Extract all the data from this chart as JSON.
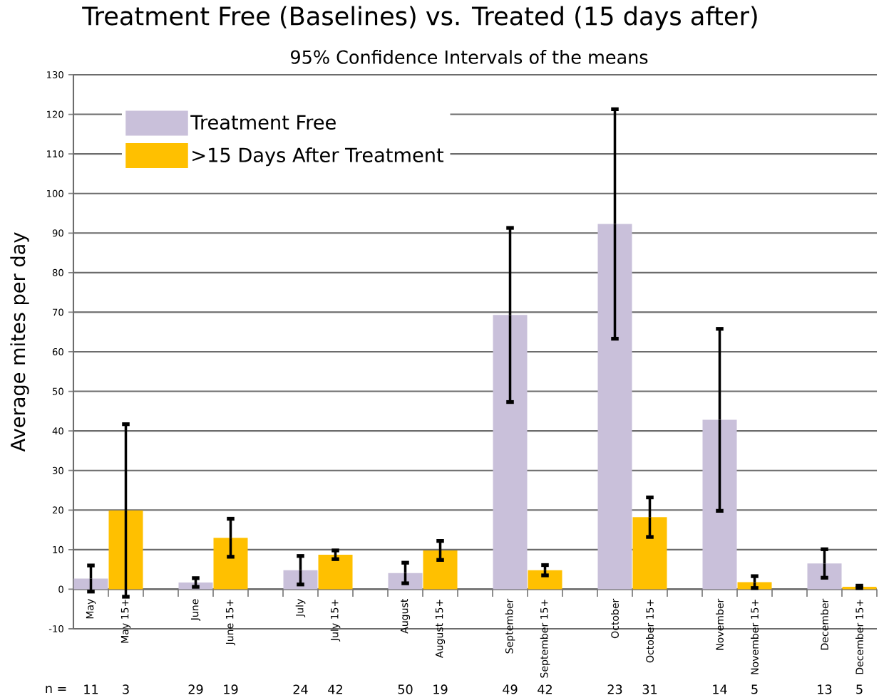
{
  "chart_data": {
    "type": "bar",
    "title": "Treatment Free (Baselines) vs. Treated (15 days after)",
    "subtitle": "95% Confidence Intervals of the means",
    "ylabel": "Average mites per day",
    "categories": [
      "May",
      "May 15+",
      null,
      "June",
      "June 15+",
      null,
      "July",
      "July 15+",
      null,
      "August",
      "August 15+",
      null,
      "September",
      "September 15+",
      null,
      "October",
      "October 15+",
      null,
      "November",
      "November 15+",
      null,
      "December",
      "December 15+"
    ],
    "series": [
      {
        "name": "Treatment Free",
        "color": "#c9c0da",
        "values": [
          2.7,
          null,
          null,
          1.7,
          null,
          null,
          4.8,
          null,
          null,
          4.1,
          null,
          null,
          69.3,
          null,
          null,
          92.3,
          null,
          null,
          42.8,
          null,
          null,
          6.5,
          null
        ],
        "errors": [
          3.3,
          null,
          null,
          1.1,
          null,
          null,
          3.6,
          null,
          null,
          2.6,
          null,
          null,
          22,
          null,
          null,
          29,
          null,
          null,
          23,
          null,
          null,
          3.6,
          null
        ]
      },
      {
        "name": ">15 Days After Treatment",
        "color": "#ffc000",
        "values": [
          null,
          19.9,
          null,
          null,
          13,
          null,
          null,
          8.7,
          null,
          null,
          9.8,
          null,
          null,
          4.8,
          null,
          null,
          18.2,
          null,
          null,
          1.8,
          null,
          null,
          0.6
        ],
        "errors": [
          null,
          21.8,
          null,
          null,
          4.8,
          null,
          null,
          1.1,
          null,
          null,
          2.4,
          null,
          null,
          1.3,
          null,
          null,
          5,
          null,
          null,
          1.5,
          null,
          null,
          0.3
        ]
      }
    ],
    "ylim": [
      -10,
      130
    ],
    "yticks": [
      -10,
      0,
      10,
      20,
      30,
      40,
      50,
      60,
      70,
      80,
      90,
      100,
      110,
      120,
      130
    ],
    "grid": "y",
    "legend": "top left",
    "annotations": [
      "n =",
      "11",
      "3",
      "29",
      "19",
      "24",
      "42",
      "50",
      "19",
      "49",
      "42",
      "23",
      "31",
      "14",
      "5",
      "13",
      "5"
    ]
  }
}
